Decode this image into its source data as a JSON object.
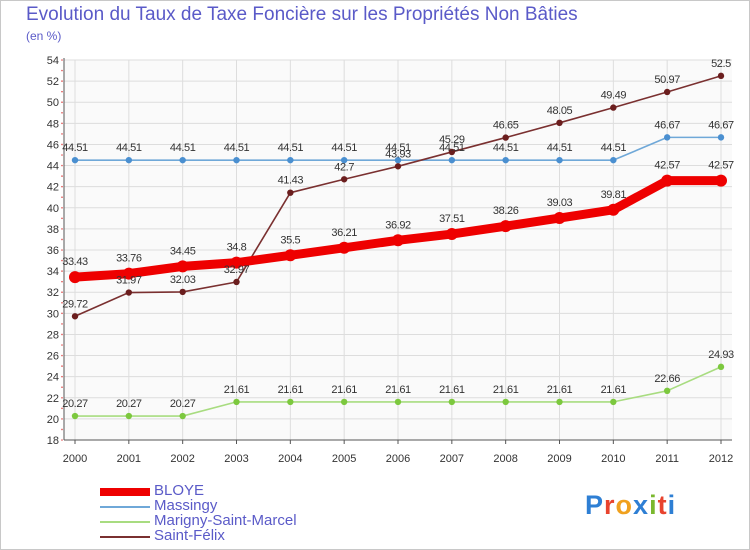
{
  "title": "Evolution du Taux de Taxe Foncière sur les Propriétés Non Bâties",
  "unit_label": "(en %)",
  "brand": {
    "letters": [
      "P",
      "r",
      "o",
      "x",
      "i",
      "t",
      "i"
    ],
    "colors": [
      "#2e7fd4",
      "#e8432e",
      "#f0a11e",
      "#2e7fd4",
      "#7ab82e",
      "#e8432e",
      "#2e7fd4"
    ]
  },
  "chart_data": {
    "type": "line",
    "title": "Evolution du Taux de Taxe Foncière sur les Propriétés Non Bâties",
    "ylabel": "(en %)",
    "xlabel": "",
    "x": [
      "2000",
      "2001",
      "2002",
      "2003",
      "2004",
      "2005",
      "2006",
      "2007",
      "2008",
      "2009",
      "2010",
      "2011",
      "2012"
    ],
    "ylim": [
      18,
      54
    ],
    "yticks": [
      18,
      20,
      22,
      24,
      26,
      28,
      30,
      32,
      34,
      36,
      38,
      40,
      42,
      44,
      46,
      48,
      50,
      52,
      54
    ],
    "grid": true,
    "legend_position": "bottom-left",
    "series": [
      {
        "name": "BLOYE",
        "color": "#ee0000",
        "marker": "#ee0000",
        "emphasis": true,
        "values": [
          33.43,
          33.76,
          34.45,
          34.8,
          35.5,
          36.21,
          36.92,
          37.51,
          38.26,
          39.03,
          39.81,
          42.57,
          42.57
        ]
      },
      {
        "name": "Massingy",
        "color": "#6fa8d8",
        "marker": "#4a8fd0",
        "emphasis": false,
        "values": [
          44.51,
          44.51,
          44.51,
          44.51,
          44.51,
          44.51,
          44.51,
          44.51,
          44.51,
          44.51,
          44.51,
          46.67,
          46.67
        ]
      },
      {
        "name": "Marigny-Saint-Marcel",
        "color": "#a8dc80",
        "marker": "#7cc83e",
        "emphasis": false,
        "values": [
          20.27,
          20.27,
          20.27,
          21.61,
          21.61,
          21.61,
          21.61,
          21.61,
          21.61,
          21.61,
          21.61,
          22.66,
          24.93
        ]
      },
      {
        "name": "Saint-Félix",
        "color": "#7a3030",
        "marker": "#6b1e1e",
        "emphasis": false,
        "values": [
          29.72,
          31.97,
          32.03,
          32.97,
          41.43,
          42.7,
          43.93,
          45.29,
          46.65,
          48.05,
          49.49,
          50.97,
          52.5
        ]
      }
    ],
    "labels": [
      [
        "33.43",
        "33.76",
        "34.45",
        "34.8",
        "35.5",
        "36.21",
        "36.92",
        "37.51",
        "38.26",
        "39.03",
        "39.81",
        "42.57",
        "42.57"
      ],
      [
        "44.51",
        "44.51",
        "44.51",
        "44.51",
        "44.51",
        "44.51",
        "44.51",
        "44.51",
        "44.51",
        "44.51",
        "44.51",
        "46.67",
        "46.67"
      ],
      [
        "20.27",
        "20.27",
        "20.27",
        "21.61",
        "21.61",
        "21.61",
        "21.61",
        "21.61",
        "21.61",
        "21.61",
        "21.61",
        "22.66",
        "24.93"
      ],
      [
        "29.72",
        "31.97",
        "32.03",
        "32.97",
        "41.43",
        "42.7",
        "43.93",
        "45.29",
        "46.65",
        "48.05",
        "49.49",
        "50.97",
        "52.5"
      ]
    ]
  }
}
